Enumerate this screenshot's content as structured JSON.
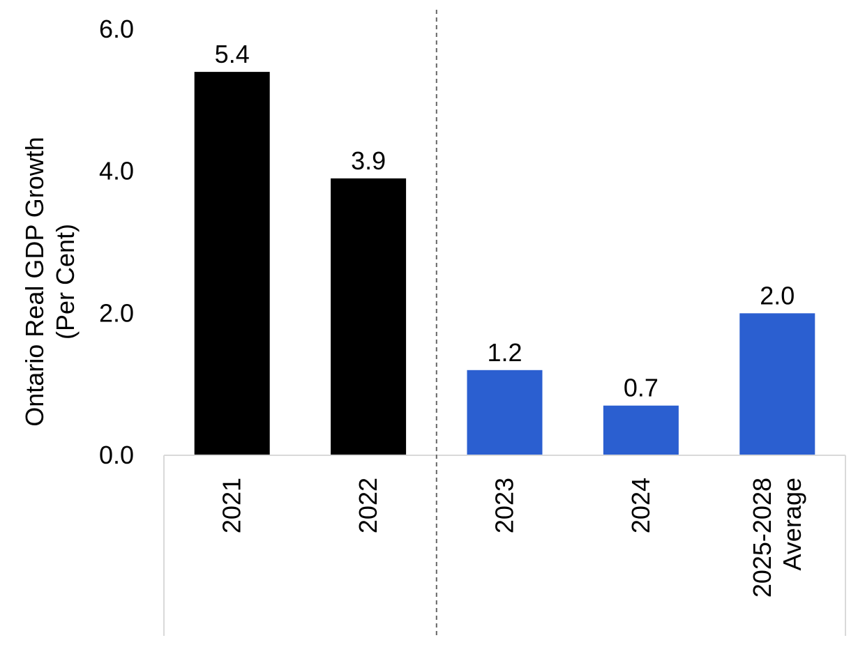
{
  "chart_data": {
    "type": "bar",
    "title": "",
    "xlabel": "",
    "ylabel": [
      "Ontario Real GDP Growth",
      "(Per Cent)"
    ],
    "categories": [
      [
        "2021"
      ],
      [
        "2022"
      ],
      [
        "2023"
      ],
      [
        "2024"
      ],
      [
        "2025-2028",
        "Average"
      ]
    ],
    "values": [
      5.4,
      3.9,
      1.2,
      0.7,
      2.0
    ],
    "value_labels": [
      "5.4",
      "3.9",
      "1.2",
      "0.7",
      "2.0"
    ],
    "bar_colors": [
      "#000000",
      "#000000",
      "#2b5fd0",
      "#2b5fd0",
      "#2b5fd0"
    ],
    "ylim": [
      0,
      6
    ],
    "yticks": [
      0,
      2,
      4,
      6
    ],
    "ytick_labels": [
      "0.0",
      "2.0",
      "4.0",
      "6.0"
    ],
    "grid": false,
    "legend": "none",
    "separator": "dashed vertical line between 2022 and 2023",
    "colors": {
      "historical": "#000000",
      "projection": "#2b5fd0",
      "axis": "#d9d9d9",
      "separator": "#666666"
    }
  }
}
